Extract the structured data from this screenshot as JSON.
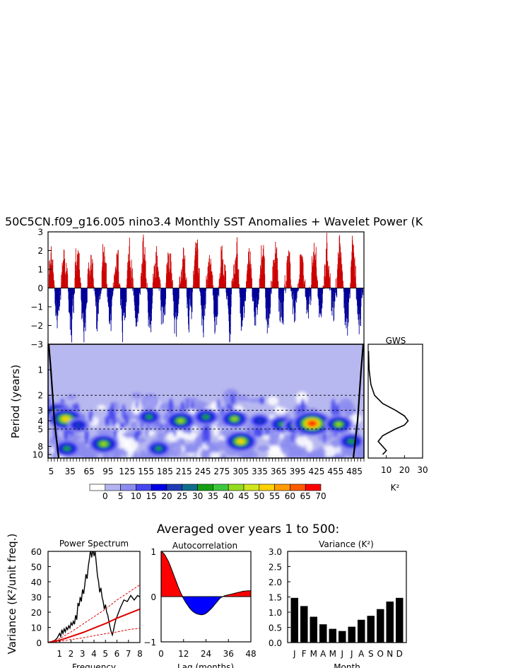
{
  "title": "50C5CN.f09_g16.005 nino3.4 Monthly SST Anomalies + Wavelet Power (K",
  "colors": {
    "pos": "#cc0000",
    "neg": "#000099",
    "fill_pos": "#ff0000",
    "fill_neg": "#0000ff",
    "coi": "#b8b8f0"
  },
  "chart_data": [
    {
      "id": "timeseries",
      "type": "bar",
      "title": "50C5CN.f09_g16.005 nino3.4 Monthly SST Anomalies + Wavelet Power (K",
      "ylim": [
        -3,
        3
      ],
      "y_ticks": [
        "3",
        "2",
        "1",
        "0",
        "−1",
        "−2",
        "−3"
      ],
      "note": "monthly anomalies, years 1-500, red above zero and blue below"
    },
    {
      "id": "wavelet",
      "type": "heatmap",
      "ylabel": "Period (years)",
      "y_ticks": [
        "1",
        "2",
        "3",
        "4",
        "5",
        "8",
        "10"
      ],
      "x_ticks": [
        "5",
        "35",
        "65",
        "95",
        "125",
        "155",
        "185",
        "215",
        "245",
        "275",
        "305",
        "335",
        "365",
        "395",
        "425",
        "455",
        "485"
      ],
      "dashed_periods": [
        2,
        3,
        5
      ],
      "colorbar": {
        "labels": [
          "0",
          "5",
          "10",
          "15",
          "20",
          "25",
          "30",
          "35",
          "40",
          "45",
          "50",
          "55",
          "60",
          "65",
          "70"
        ],
        "colors": [
          "#ffffff",
          "#b4b4f0",
          "#8c8cf0",
          "#4646f0",
          "#0000e6",
          "#1e3cb4",
          "#0f6e8c",
          "#12a012",
          "#3cc83c",
          "#96dc1e",
          "#d2e61e",
          "#ffd200",
          "#ff9b00",
          "#ff5a00",
          "#ff0000"
        ]
      },
      "blobs": [
        {
          "year": 15,
          "period": 3.2,
          "level": 10
        },
        {
          "year": 28,
          "period": 3.8,
          "level": 12
        },
        {
          "year": 30,
          "period": 8.5,
          "level": 8
        },
        {
          "year": 88,
          "period": 7.5,
          "level": 10
        },
        {
          "year": 48,
          "period": 4.5,
          "level": 6
        },
        {
          "year": 160,
          "period": 3.6,
          "level": 7
        },
        {
          "year": 175,
          "period": 8.5,
          "level": 7
        },
        {
          "year": 210,
          "period": 4.0,
          "level": 10
        },
        {
          "year": 250,
          "period": 3.6,
          "level": 8
        },
        {
          "year": 295,
          "period": 3.8,
          "level": 9
        },
        {
          "year": 305,
          "period": 7.0,
          "level": 11
        },
        {
          "year": 335,
          "period": 4.0,
          "level": 6
        },
        {
          "year": 370,
          "period": 4.4,
          "level": 8
        },
        {
          "year": 390,
          "period": 4.6,
          "level": 7
        },
        {
          "year": 418,
          "period": 4.3,
          "level": 14
        },
        {
          "year": 460,
          "period": 4.4,
          "level": 9
        },
        {
          "year": 480,
          "period": 7.0,
          "level": 8
        }
      ]
    },
    {
      "id": "gws",
      "type": "line",
      "title": "GWS",
      "xlabel": "K²",
      "x_ticks": [
        "10",
        "20",
        "30"
      ],
      "xlim": [
        0,
        30
      ],
      "period": [
        0.6,
        1.0,
        1.5,
        2.0,
        2.5,
        3.0,
        3.5,
        4.0,
        4.5,
        5.0,
        6.0,
        7.0,
        8.0,
        9.0,
        10.0
      ],
      "x": [
        0.2,
        0.5,
        1.5,
        3.5,
        8.0,
        15.0,
        20.0,
        22.0,
        20.0,
        15.0,
        8.0,
        5.5,
        8.0,
        10.0,
        8.0
      ]
    },
    {
      "id": "power_spectrum",
      "type": "line",
      "title": "Power Spectrum",
      "ylabel": "Variance (K²/unit freq.)",
      "xlabel": "Frequency",
      "x_ticks": [
        "1",
        "2",
        "3",
        "4",
        "5",
        "6",
        "7",
        "8"
      ],
      "y_ticks": [
        "60",
        "50",
        "40",
        "30",
        "20",
        "10",
        "0"
      ],
      "xlim": [
        0,
        8
      ],
      "ylim": [
        0,
        60
      ],
      "series": [
        {
          "values": [
            [
              0.0,
              0.2
            ],
            [
              0.3,
              0.6
            ],
            [
              0.6,
              1.5
            ],
            [
              0.8,
              3.0
            ],
            [
              1.0,
              6.0
            ],
            [
              1.1,
              4.0
            ],
            [
              1.2,
              8.5
            ],
            [
              1.3,
              6.0
            ],
            [
              1.4,
              9.0
            ],
            [
              1.5,
              7.0
            ],
            [
              1.6,
              10.0
            ],
            [
              1.7,
              8.5
            ],
            [
              1.8,
              11.0
            ],
            [
              1.9,
              9.5
            ],
            [
              2.0,
              13.0
            ],
            [
              2.1,
              11.5
            ],
            [
              2.2,
              14.0
            ],
            [
              2.3,
              12.0
            ],
            [
              2.4,
              18.0
            ],
            [
              2.5,
              15.0
            ],
            [
              2.6,
              26.0
            ],
            [
              2.7,
              24.0
            ],
            [
              2.8,
              30.0
            ],
            [
              2.9,
              27.0
            ],
            [
              3.0,
              35.0
            ],
            [
              3.1,
              32.0
            ],
            [
              3.2,
              38.0
            ],
            [
              3.3,
              45.0
            ],
            [
              3.4,
              42.0
            ],
            [
              3.5,
              50.0
            ],
            [
              3.6,
              55.0
            ],
            [
              3.7,
              61.0
            ],
            [
              3.8,
              56.0
            ],
            [
              3.9,
              62.0
            ],
            [
              4.0,
              57.0
            ],
            [
              4.1,
              60.0
            ],
            [
              4.2,
              52.0
            ],
            [
              4.3,
              44.0
            ],
            [
              4.4,
              40.0
            ],
            [
              4.5,
              33.0
            ],
            [
              4.6,
              36.0
            ],
            [
              4.7,
              30.0
            ],
            [
              4.8,
              27.0
            ],
            [
              4.9,
              22.0
            ],
            [
              5.0,
              25.0
            ],
            [
              5.1,
              20.0
            ],
            [
              5.2,
              18.0
            ],
            [
              5.3,
              14.0
            ],
            [
              5.4,
              10.0
            ],
            [
              5.5,
              7.0
            ],
            [
              5.6,
              5.0
            ],
            [
              5.7,
              8.0
            ],
            [
              5.8,
              12.0
            ],
            [
              5.9,
              15.0
            ],
            [
              6.0,
              17.0
            ],
            [
              6.3,
              23.0
            ],
            [
              6.6,
              28.0
            ],
            [
              6.9,
              27.0
            ],
            [
              7.2,
              31.0
            ],
            [
              7.5,
              28.0
            ],
            [
              7.8,
              31.0
            ],
            [
              8.0,
              30.0
            ]
          ]
        },
        {
          "values": [
            [
              0,
              0
            ],
            [
              1,
              1.5
            ],
            [
              2,
              4
            ],
            [
              3,
              6.5
            ],
            [
              4,
              9.5
            ],
            [
              5,
              12.5
            ],
            [
              6,
              16
            ],
            [
              7,
              19
            ],
            [
              8,
              22
            ]
          ]
        },
        {
          "values": [
            [
              0,
              0
            ],
            [
              1,
              2.5
            ],
            [
              2,
              7
            ],
            [
              3,
              12
            ],
            [
              4,
              17
            ],
            [
              5,
              22
            ],
            [
              6,
              28
            ],
            [
              7,
              33
            ],
            [
              8,
              38
            ]
          ]
        },
        {
          "values": [
            [
              0,
              0
            ],
            [
              1,
              0.8
            ],
            [
              2,
              2
            ],
            [
              3,
              3
            ],
            [
              4,
              4.5
            ],
            [
              5,
              5.8
            ],
            [
              6,
              7
            ],
            [
              7,
              8.5
            ],
            [
              8,
              9.5
            ]
          ]
        }
      ]
    },
    {
      "id": "autocorrelation",
      "type": "area",
      "title": "Autocorrelation",
      "xlabel": "Lag (months)",
      "x_ticks": [
        "0",
        "12",
        "24",
        "36",
        "48"
      ],
      "y_ticks": [
        "1",
        "0",
        "−1"
      ],
      "xlim": [
        0,
        48
      ],
      "ylim": [
        -1,
        1
      ],
      "x": [
        0,
        1,
        2,
        3,
        4,
        5,
        6,
        7,
        8,
        9,
        10,
        11,
        12,
        13,
        14,
        15,
        16,
        17,
        18,
        19,
        20,
        21,
        22,
        23,
        24,
        25,
        26,
        27,
        28,
        29,
        30,
        31,
        32,
        33,
        34,
        35,
        36,
        37,
        38,
        39,
        40,
        41,
        42,
        43,
        44,
        45,
        46,
        47,
        48
      ],
      "values": [
        1.0,
        0.97,
        0.92,
        0.85,
        0.77,
        0.67,
        0.56,
        0.45,
        0.34,
        0.23,
        0.13,
        0.04,
        -0.05,
        -0.12,
        -0.18,
        -0.24,
        -0.29,
        -0.33,
        -0.36,
        -0.38,
        -0.39,
        -0.4,
        -0.4,
        -0.39,
        -0.37,
        -0.34,
        -0.3,
        -0.26,
        -0.21,
        -0.16,
        -0.11,
        -0.06,
        -0.02,
        0.0,
        0.02,
        0.03,
        0.04,
        0.05,
        0.06,
        0.07,
        0.08,
        0.09,
        0.1,
        0.11,
        0.12,
        0.12,
        0.13,
        0.13,
        0.13
      ]
    },
    {
      "id": "variance",
      "type": "bar",
      "title": "Variance (K²)",
      "xlabel": "Month",
      "categories": [
        "J",
        "F",
        "M",
        "A",
        "M",
        "J",
        "J",
        "A",
        "S",
        "O",
        "N",
        "D"
      ],
      "values": [
        1.47,
        1.2,
        0.85,
        0.6,
        0.45,
        0.38,
        0.52,
        0.75,
        0.88,
        1.1,
        1.35,
        1.47
      ],
      "y_ticks": [
        "3.0",
        "2.5",
        "2.0",
        "1.5",
        "1.0",
        "0.5",
        "0.0"
      ],
      "ylim": [
        0,
        3
      ]
    }
  ],
  "averaged_title": "Averaged over years 1 to 500:"
}
